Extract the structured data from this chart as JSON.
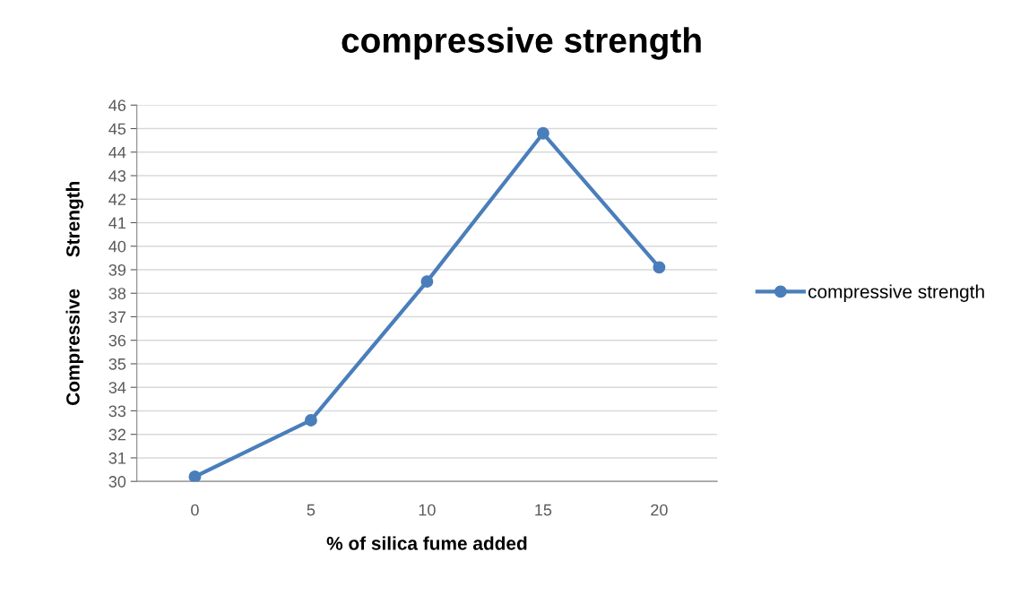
{
  "chart_data": {
    "type": "line",
    "title": "compressive strength",
    "xlabel": "% of silica fume added",
    "ylabel": "Compressive      Strength",
    "categories": [
      "0",
      "5",
      "10",
      "15",
      "20"
    ],
    "series": [
      {
        "name": "compressive strength",
        "color": "#4a7ebb",
        "values": [
          30.2,
          32.6,
          38.5,
          44.8,
          39.1
        ]
      }
    ],
    "ylim": [
      30,
      46
    ],
    "yticks": [
      30,
      31,
      32,
      33,
      34,
      35,
      36,
      37,
      38,
      39,
      40,
      41,
      42,
      43,
      44,
      45,
      46
    ],
    "grid": "y",
    "legend": "right",
    "marker": "circle",
    "line_style": "solid"
  }
}
